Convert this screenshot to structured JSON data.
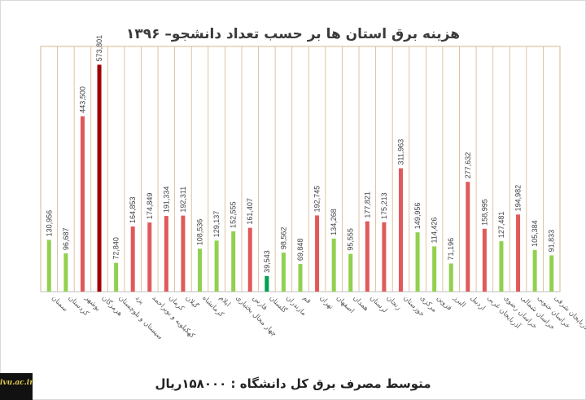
{
  "chart_data": {
    "type": "bar",
    "title": "هزینه برق استان ها بر حسب تعداد دانشجو–  ۱۳۹۶",
    "categories": [
      "سمنان",
      "کردستان",
      "بوشهر",
      "هرمزگان",
      "سیستان و بلوچستان",
      "یزد",
      "کهکیلویه و بویراحمد",
      "کرمان",
      "گیلان",
      "کرمانشاه",
      "ایلام",
      "چهار محال بختیاری",
      "فارس",
      "گلستان",
      "مازندران",
      "قم",
      "تهران",
      "اصفهان",
      "همدان",
      "لرستان",
      "زنجان",
      "خوزستان",
      "مرکزی",
      "قزوین",
      "البرز",
      "اردبیل",
      "آذربایجان غربی",
      "خراسان رضوی",
      "خراسان شمالی",
      "خراسان جنوبی",
      "آذربایجان شرقی"
    ],
    "values": [
      130956,
      96687,
      443500,
      573801,
      72840,
      164853,
      174849,
      191334,
      192311,
      108536,
      129137,
      152555,
      161407,
      39543,
      98562,
      69848,
      192745,
      134268,
      95555,
      177821,
      175213,
      311963,
      149956,
      114426,
      71196,
      277632,
      158995,
      127481,
      194982,
      105384,
      91833
    ],
    "value_labels": [
      "130,956",
      "96,687",
      "443,500",
      "573,801",
      "72,840",
      "164,853",
      "174,849",
      "191,334",
      "192,311",
      "108,536",
      "129,137",
      "152,555",
      "161,407",
      "39,543",
      "98,562",
      "69,848",
      "192,745",
      "134,268",
      "95,555",
      "177,821",
      "175,213",
      "311,963",
      "149,956",
      "114,426",
      "71,196",
      "277,632",
      "158,995",
      "127,481",
      "194,982",
      "105,384",
      "91,833"
    ],
    "bar_colors": [
      "#92d050",
      "#92d050",
      "#e05a5a",
      "#a00000",
      "#92d050",
      "#e05a5a",
      "#e05a5a",
      "#e05a5a",
      "#e05a5a",
      "#92d050",
      "#92d050",
      "#92d050",
      "#e05a5a",
      "#00a050",
      "#92d050",
      "#92d050",
      "#e05a5a",
      "#92d050",
      "#92d050",
      "#e05a5a",
      "#e05a5a",
      "#e05a5a",
      "#92d050",
      "#92d050",
      "#92d050",
      "#e05a5a",
      "#e05a5a",
      "#92d050",
      "#e05a5a",
      "#92d050",
      "#92d050"
    ],
    "ylim": [
      0,
      620000
    ],
    "grid": true,
    "grid_color": "#d9b48c",
    "xlabel": "",
    "ylabel": "",
    "footer": "متوسط مصرف برق کل دانشگاه :  ۱۵۸۰۰۰ریال"
  },
  "watermark": {
    "text": "ivu.ac.ir"
  }
}
